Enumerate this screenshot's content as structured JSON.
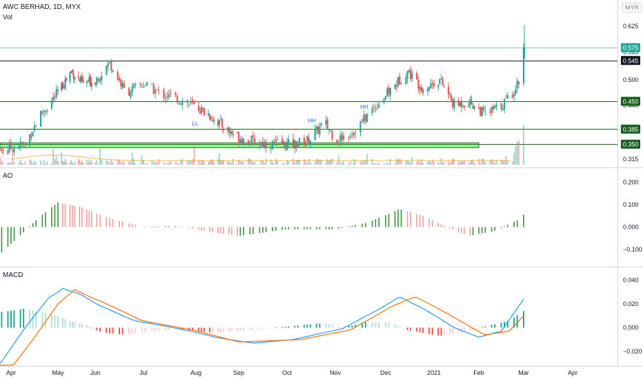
{
  "header": {
    "symbol": "AWC BERHAD, 1D, MYX",
    "volume_label": "Vol",
    "currency": "MYR"
  },
  "panels": {
    "ao_title": "AO",
    "macd_title": "MACD"
  },
  "colors": {
    "up": "#26a69a",
    "down": "#ef5350",
    "line_black": "#131722",
    "support_line": "#1b5e20",
    "zone_fill": "#7dff7d",
    "ao_up": "#388e3c",
    "ao_down": "#ef9a9a",
    "macd": "#2196f3",
    "signal": "#ff6d00",
    "price_badge": "#26a69a"
  },
  "chart_data": [
    {
      "type": "candlestick",
      "title": "AWC BERHAD, 1D, MYX",
      "x_ticks": [
        "Apr",
        "May",
        "Jun",
        "Jul",
        "Aug",
        "Sep",
        "Oct",
        "Nov",
        "Dec",
        "2021",
        "Feb",
        "Mar",
        "Apr"
      ],
      "y_ticks": [
        0.315,
        0.44,
        0.5,
        0.565,
        0.625
      ],
      "ylim": [
        0.305,
        0.635
      ],
      "price_labels": [
        {
          "value": "0.575",
          "style": "current"
        },
        {
          "value": "0.545",
          "style": "black"
        },
        {
          "value": "0.450",
          "style": "green"
        },
        {
          "value": "0.385",
          "style": "green"
        },
        {
          "value": "0.350",
          "style": "green"
        }
      ],
      "horizontal_lines": [
        {
          "price": 0.545,
          "color": "black"
        },
        {
          "price": 0.45,
          "color": "green"
        },
        {
          "price": 0.385,
          "color": "green"
        },
        {
          "price": 0.35,
          "color": "green"
        }
      ],
      "zone": {
        "from": 0.342,
        "to": 0.353,
        "start_month": "Apr",
        "end_month": "Feb"
      },
      "annotations": [
        {
          "text": "LL",
          "month": "Aug",
          "price": 0.403
        },
        {
          "text": "HH",
          "month": "Oct",
          "price": 0.395
        },
        {
          "text": "HH",
          "month": "Nov",
          "price": 0.432
        }
      ],
      "path": [
        [
          "2020-03-20",
          0.33
        ],
        [
          "2020-04-10",
          0.35
        ],
        [
          "2020-04-20",
          0.42
        ],
        [
          "2020-05-01",
          0.47
        ],
        [
          "2020-05-12",
          0.52
        ],
        [
          "2020-05-22",
          0.49
        ],
        [
          "2020-06-01",
          0.5
        ],
        [
          "2020-06-10",
          0.54
        ],
        [
          "2020-06-20",
          0.47
        ],
        [
          "2020-07-01",
          0.49
        ],
        [
          "2020-07-10",
          0.47
        ],
        [
          "2020-07-25",
          0.45
        ],
        [
          "2020-08-10",
          0.42
        ],
        [
          "2020-08-25",
          0.38
        ],
        [
          "2020-09-05",
          0.36
        ],
        [
          "2020-09-20",
          0.35
        ],
        [
          "2020-10-05",
          0.35
        ],
        [
          "2020-10-15",
          0.36
        ],
        [
          "2020-10-25",
          0.4
        ],
        [
          "2020-11-02",
          0.36
        ],
        [
          "2020-11-12",
          0.38
        ],
        [
          "2020-11-25",
          0.44
        ],
        [
          "2020-12-05",
          0.48
        ],
        [
          "2020-12-15",
          0.52
        ],
        [
          "2020-12-25",
          0.48
        ],
        [
          "2021-01-05",
          0.5
        ],
        [
          "2021-01-15",
          0.44
        ],
        [
          "2021-01-25",
          0.45
        ],
        [
          "2021-02-05",
          0.42
        ],
        [
          "2021-02-15",
          0.44
        ],
        [
          "2021-02-22",
          0.47
        ],
        [
          "2021-02-26",
          0.5
        ],
        [
          "2021-03-01",
          0.575
        ]
      ]
    },
    {
      "type": "bar",
      "title": "AO",
      "y_ticks": [
        0.2,
        0.1,
        0.0,
        -0.1
      ],
      "ylim": [
        -0.155,
        0.225
      ],
      "path": [
        [
          "2020-03-20",
          -0.15
        ],
        [
          "2020-04-05",
          -0.05
        ],
        [
          "2020-04-20",
          0.05
        ],
        [
          "2020-05-01",
          0.11
        ],
        [
          "2020-05-20",
          0.09
        ],
        [
          "2020-06-10",
          0.04
        ],
        [
          "2020-07-01",
          0.0
        ],
        [
          "2020-07-20",
          0.005
        ],
        [
          "2020-08-10",
          -0.02
        ],
        [
          "2020-09-01",
          -0.04
        ],
        [
          "2020-10-01",
          -0.01
        ],
        [
          "2020-11-01",
          -0.01
        ],
        [
          "2020-11-20",
          0.02
        ],
        [
          "2020-12-10",
          0.08
        ],
        [
          "2020-12-25",
          0.05
        ],
        [
          "2021-01-10",
          0.0
        ],
        [
          "2021-01-25",
          -0.04
        ],
        [
          "2021-02-10",
          -0.02
        ],
        [
          "2021-02-25",
          0.03
        ],
        [
          "2021-03-01",
          0.055
        ]
      ]
    },
    {
      "type": "line",
      "title": "MACD",
      "y_ticks": [
        0.04,
        0.02,
        0.0,
        -0.02
      ],
      "ylim": [
        -0.03,
        0.044
      ],
      "series": [
        {
          "path": [
            [
              "2020-03-20",
              -0.04
            ],
            [
              "2020-04-10",
              0.0
            ],
            [
              "2020-04-25",
              0.025
            ],
            [
              "2020-05-05",
              0.033
            ],
            [
              "2020-05-20",
              0.028
            ],
            [
              "2020-06-05",
              0.018
            ],
            [
              "2020-06-25",
              0.006
            ],
            [
              "2020-07-15",
              0.001
            ],
            [
              "2020-08-15",
              -0.008
            ],
            [
              "2020-09-10",
              -0.013
            ],
            [
              "2020-10-05",
              -0.01
            ],
            [
              "2020-11-05",
              -0.001
            ],
            [
              "2020-11-25",
              0.014
            ],
            [
              "2020-12-10",
              0.026
            ],
            [
              "2020-12-25",
              0.016
            ],
            [
              "2021-01-15",
              0.0
            ],
            [
              "2021-02-01",
              -0.008
            ],
            [
              "2021-02-15",
              -0.003
            ],
            [
              "2021-03-01",
              0.024
            ]
          ]
        },
        {
          "path": [
            [
              "2020-03-20",
              -0.055
            ],
            [
              "2020-04-15",
              -0.01
            ],
            [
              "2020-05-01",
              0.02
            ],
            [
              "2020-05-15",
              0.032
            ],
            [
              "2020-06-05",
              0.022
            ],
            [
              "2020-06-30",
              0.006
            ],
            [
              "2020-07-30",
              -0.002
            ],
            [
              "2020-09-01",
              -0.012
            ],
            [
              "2020-10-10",
              -0.01
            ],
            [
              "2020-11-10",
              -0.002
            ],
            [
              "2020-12-05",
              0.018
            ],
            [
              "2020-12-20",
              0.026
            ],
            [
              "2021-01-10",
              0.012
            ],
            [
              "2021-02-05",
              -0.006
            ],
            [
              "2021-02-20",
              -0.003
            ],
            [
              "2021-03-01",
              0.01
            ]
          ]
        }
      ],
      "histogram": [
        [
          "2020-03-20",
          0.012
        ],
        [
          "2020-04-10",
          0.016
        ],
        [
          "2020-04-25",
          0.012
        ],
        [
          "2020-05-10",
          0.006
        ],
        [
          "2020-05-25",
          0.002
        ],
        [
          "2020-06-05",
          -0.004
        ],
        [
          "2020-06-20",
          -0.006
        ],
        [
          "2020-07-05",
          -0.003
        ],
        [
          "2020-07-20",
          -0.001
        ],
        [
          "2020-08-10",
          -0.004
        ],
        [
          "2020-09-01",
          -0.003
        ],
        [
          "2020-10-01",
          0.001
        ],
        [
          "2020-10-25",
          0.004
        ],
        [
          "2020-11-05",
          0.0
        ],
        [
          "2020-11-20",
          0.005
        ],
        [
          "2020-12-05",
          0.004
        ],
        [
          "2020-12-15",
          -0.002
        ],
        [
          "2021-01-05",
          -0.007
        ],
        [
          "2021-01-20",
          -0.004
        ],
        [
          "2021-02-05",
          0.001
        ],
        [
          "2021-02-20",
          0.006
        ],
        [
          "2021-03-01",
          0.014
        ]
      ]
    }
  ]
}
